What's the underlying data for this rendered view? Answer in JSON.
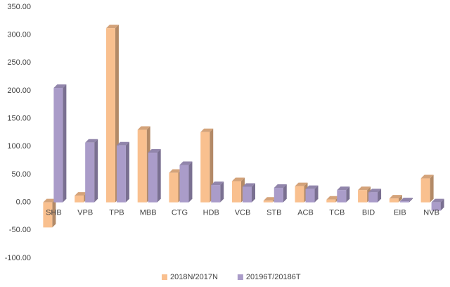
{
  "chart_data": {
    "type": "bar3d",
    "categories": [
      "SHB",
      "VPB",
      "TPB",
      "MBB",
      "CTG",
      "HDB",
      "VCB",
      "STB",
      "ACB",
      "TCB",
      "BID",
      "EIB",
      "NVB"
    ],
    "series": [
      {
        "name": "2018N/2017N",
        "color": "#f9c08f",
        "values": [
          -45,
          12,
          312,
          130,
          53,
          126,
          38,
          3,
          29,
          5,
          22,
          7,
          43
        ]
      },
      {
        "name": "20196T/20186T",
        "color": "#aa9cc9",
        "values": [
          205,
          107,
          102,
          89,
          67,
          31,
          28,
          26,
          24,
          22,
          18,
          2,
          -15
        ]
      }
    ],
    "ylim": [
      -100,
      350
    ],
    "yticks": [
      {
        "value": -100,
        "label": "-100.00"
      },
      {
        "value": -50,
        "label": "-50.00"
      },
      {
        "value": 0,
        "label": "0.00"
      },
      {
        "value": 50,
        "label": "50.00"
      },
      {
        "value": 100,
        "label": "100.00"
      },
      {
        "value": 150,
        "label": "150.00"
      },
      {
        "value": 200,
        "label": "200.00"
      },
      {
        "value": 250,
        "label": "250.00"
      },
      {
        "value": 300,
        "label": "300.00"
      },
      {
        "value": 350,
        "label": "350.00"
      }
    ],
    "legend": "bottom"
  }
}
